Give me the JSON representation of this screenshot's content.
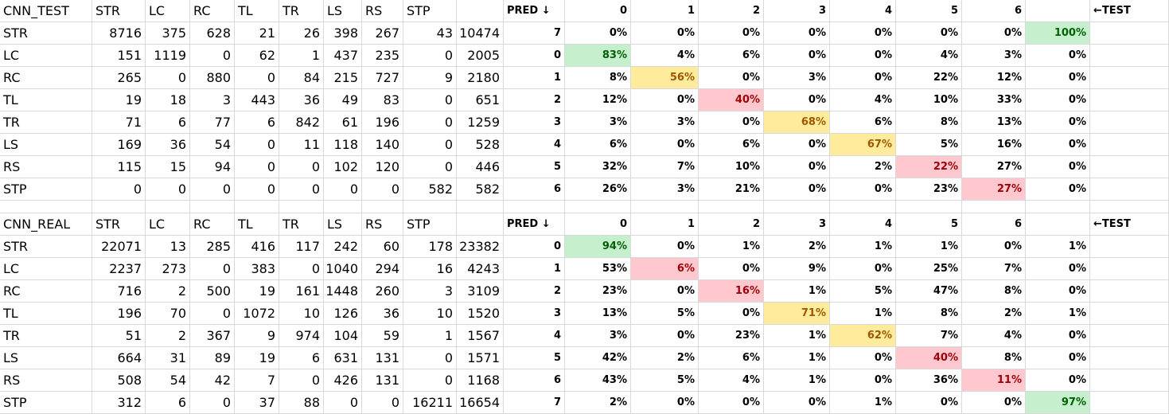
{
  "highlight_colors": {
    "green": "#c6efce",
    "yellow": "#ffeb9c",
    "red": "#ffc7ce",
    "grid": "#d9d9d9"
  },
  "tables": [
    {
      "title": "CNN_TEST",
      "headers": [
        "STR",
        "LC",
        "RC",
        "TL",
        "TR",
        "LS",
        "RS",
        "STP"
      ],
      "rows": [
        {
          "label": "STR",
          "values": [
            "8716",
            "375",
            "628",
            "21",
            "26",
            "398",
            "267",
            "43",
            "10474"
          ]
        },
        {
          "label": "LC",
          "values": [
            "151",
            "1119",
            "0",
            "62",
            "1",
            "437",
            "235",
            "0",
            "2005"
          ]
        },
        {
          "label": "RC",
          "values": [
            "265",
            "0",
            "880",
            "0",
            "84",
            "215",
            "727",
            "9",
            "2180"
          ]
        },
        {
          "label": "TL",
          "values": [
            "19",
            "18",
            "3",
            "443",
            "36",
            "49",
            "83",
            "0",
            "651"
          ]
        },
        {
          "label": "TR",
          "values": [
            "71",
            "6",
            "77",
            "6",
            "842",
            "61",
            "196",
            "0",
            "1259"
          ]
        },
        {
          "label": "LS",
          "values": [
            "169",
            "36",
            "54",
            "0",
            "11",
            "118",
            "140",
            "0",
            "528"
          ]
        },
        {
          "label": "RS",
          "values": [
            "115",
            "15",
            "94",
            "0",
            "0",
            "102",
            "120",
            "0",
            "446"
          ]
        },
        {
          "label": "STP",
          "values": [
            "0",
            "0",
            "0",
            "0",
            "0",
            "0",
            "0",
            "582",
            "582"
          ]
        }
      ],
      "pct_header": {
        "pred": "PRED ↓",
        "cols": [
          "0",
          "1",
          "2",
          "3",
          "4",
          "5",
          "6"
        ],
        "test": "←TEST"
      },
      "pct_rows": [
        {
          "idx": "7",
          "values": [
            "0%",
            "0%",
            "0%",
            "0%",
            "0%",
            "0%",
            "0%",
            "100%"
          ]
        },
        {
          "idx": "0",
          "values": [
            "83%",
            "4%",
            "6%",
            "0%",
            "0%",
            "4%",
            "3%",
            "0%"
          ]
        },
        {
          "idx": "1",
          "values": [
            "8%",
            "56%",
            "0%",
            "3%",
            "0%",
            "22%",
            "12%",
            "0%"
          ]
        },
        {
          "idx": "2",
          "values": [
            "12%",
            "0%",
            "40%",
            "0%",
            "4%",
            "10%",
            "33%",
            "0%"
          ]
        },
        {
          "idx": "3",
          "values": [
            "3%",
            "3%",
            "0%",
            "68%",
            "6%",
            "8%",
            "13%",
            "0%"
          ]
        },
        {
          "idx": "4",
          "values": [
            "6%",
            "0%",
            "6%",
            "0%",
            "67%",
            "5%",
            "16%",
            "0%"
          ]
        },
        {
          "idx": "5",
          "values": [
            "32%",
            "7%",
            "10%",
            "0%",
            "2%",
            "22%",
            "27%",
            "0%"
          ]
        },
        {
          "idx": "6",
          "values": [
            "26%",
            "3%",
            "21%",
            "0%",
            "0%",
            "23%",
            "27%",
            "0%"
          ]
        }
      ],
      "diag_colors": [
        "green",
        "yellow",
        "red",
        "yellow",
        "yellow",
        "red",
        "red",
        "green"
      ]
    },
    {
      "title": "CNN_REAL",
      "headers": [
        "STR",
        "LC",
        "RC",
        "TL",
        "TR",
        "LS",
        "RS",
        "STP"
      ],
      "rows": [
        {
          "label": "STR",
          "values": [
            "22071",
            "13",
            "285",
            "416",
            "117",
            "242",
            "60",
            "178",
            "23382"
          ]
        },
        {
          "label": "LC",
          "values": [
            "2237",
            "273",
            "0",
            "383",
            "0",
            "1040",
            "294",
            "16",
            "4243"
          ]
        },
        {
          "label": "RC",
          "values": [
            "716",
            "2",
            "500",
            "19",
            "161",
            "1448",
            "260",
            "3",
            "3109"
          ]
        },
        {
          "label": "TL",
          "values": [
            "196",
            "70",
            "0",
            "1072",
            "10",
            "126",
            "36",
            "10",
            "1520"
          ]
        },
        {
          "label": "TR",
          "values": [
            "51",
            "2",
            "367",
            "9",
            "974",
            "104",
            "59",
            "1",
            "1567"
          ]
        },
        {
          "label": "LS",
          "values": [
            "664",
            "31",
            "89",
            "19",
            "6",
            "631",
            "131",
            "0",
            "1571"
          ]
        },
        {
          "label": "RS",
          "values": [
            "508",
            "54",
            "42",
            "7",
            "0",
            "426",
            "131",
            "0",
            "1168"
          ]
        },
        {
          "label": "STP",
          "values": [
            "312",
            "6",
            "0",
            "37",
            "88",
            "0",
            "0",
            "16211",
            "16654"
          ]
        }
      ],
      "pct_header": {
        "pred": "PRED ↓",
        "cols": [
          "0",
          "1",
          "2",
          "3",
          "4",
          "5",
          "6"
        ],
        "test": "←TEST"
      },
      "pct_rows": [
        {
          "idx": "0",
          "values": [
            "94%",
            "0%",
            "1%",
            "2%",
            "1%",
            "1%",
            "0%",
            "1%"
          ]
        },
        {
          "idx": "1",
          "values": [
            "53%",
            "6%",
            "0%",
            "9%",
            "0%",
            "25%",
            "7%",
            "0%"
          ]
        },
        {
          "idx": "2",
          "values": [
            "23%",
            "0%",
            "16%",
            "1%",
            "5%",
            "47%",
            "8%",
            "0%"
          ]
        },
        {
          "idx": "3",
          "values": [
            "13%",
            "5%",
            "0%",
            "71%",
            "1%",
            "8%",
            "2%",
            "1%"
          ]
        },
        {
          "idx": "4",
          "values": [
            "3%",
            "0%",
            "23%",
            "1%",
            "62%",
            "7%",
            "4%",
            "0%"
          ]
        },
        {
          "idx": "5",
          "values": [
            "42%",
            "2%",
            "6%",
            "1%",
            "0%",
            "40%",
            "8%",
            "0%"
          ]
        },
        {
          "idx": "6",
          "values": [
            "43%",
            "5%",
            "4%",
            "1%",
            "0%",
            "36%",
            "11%",
            "0%"
          ]
        },
        {
          "idx": "7",
          "values": [
            "2%",
            "0%",
            "0%",
            "0%",
            "1%",
            "0%",
            "0%",
            "97%"
          ]
        }
      ],
      "diag_colors": [
        "green",
        "red",
        "red",
        "yellow",
        "yellow",
        "red",
        "red",
        "green"
      ]
    }
  ]
}
